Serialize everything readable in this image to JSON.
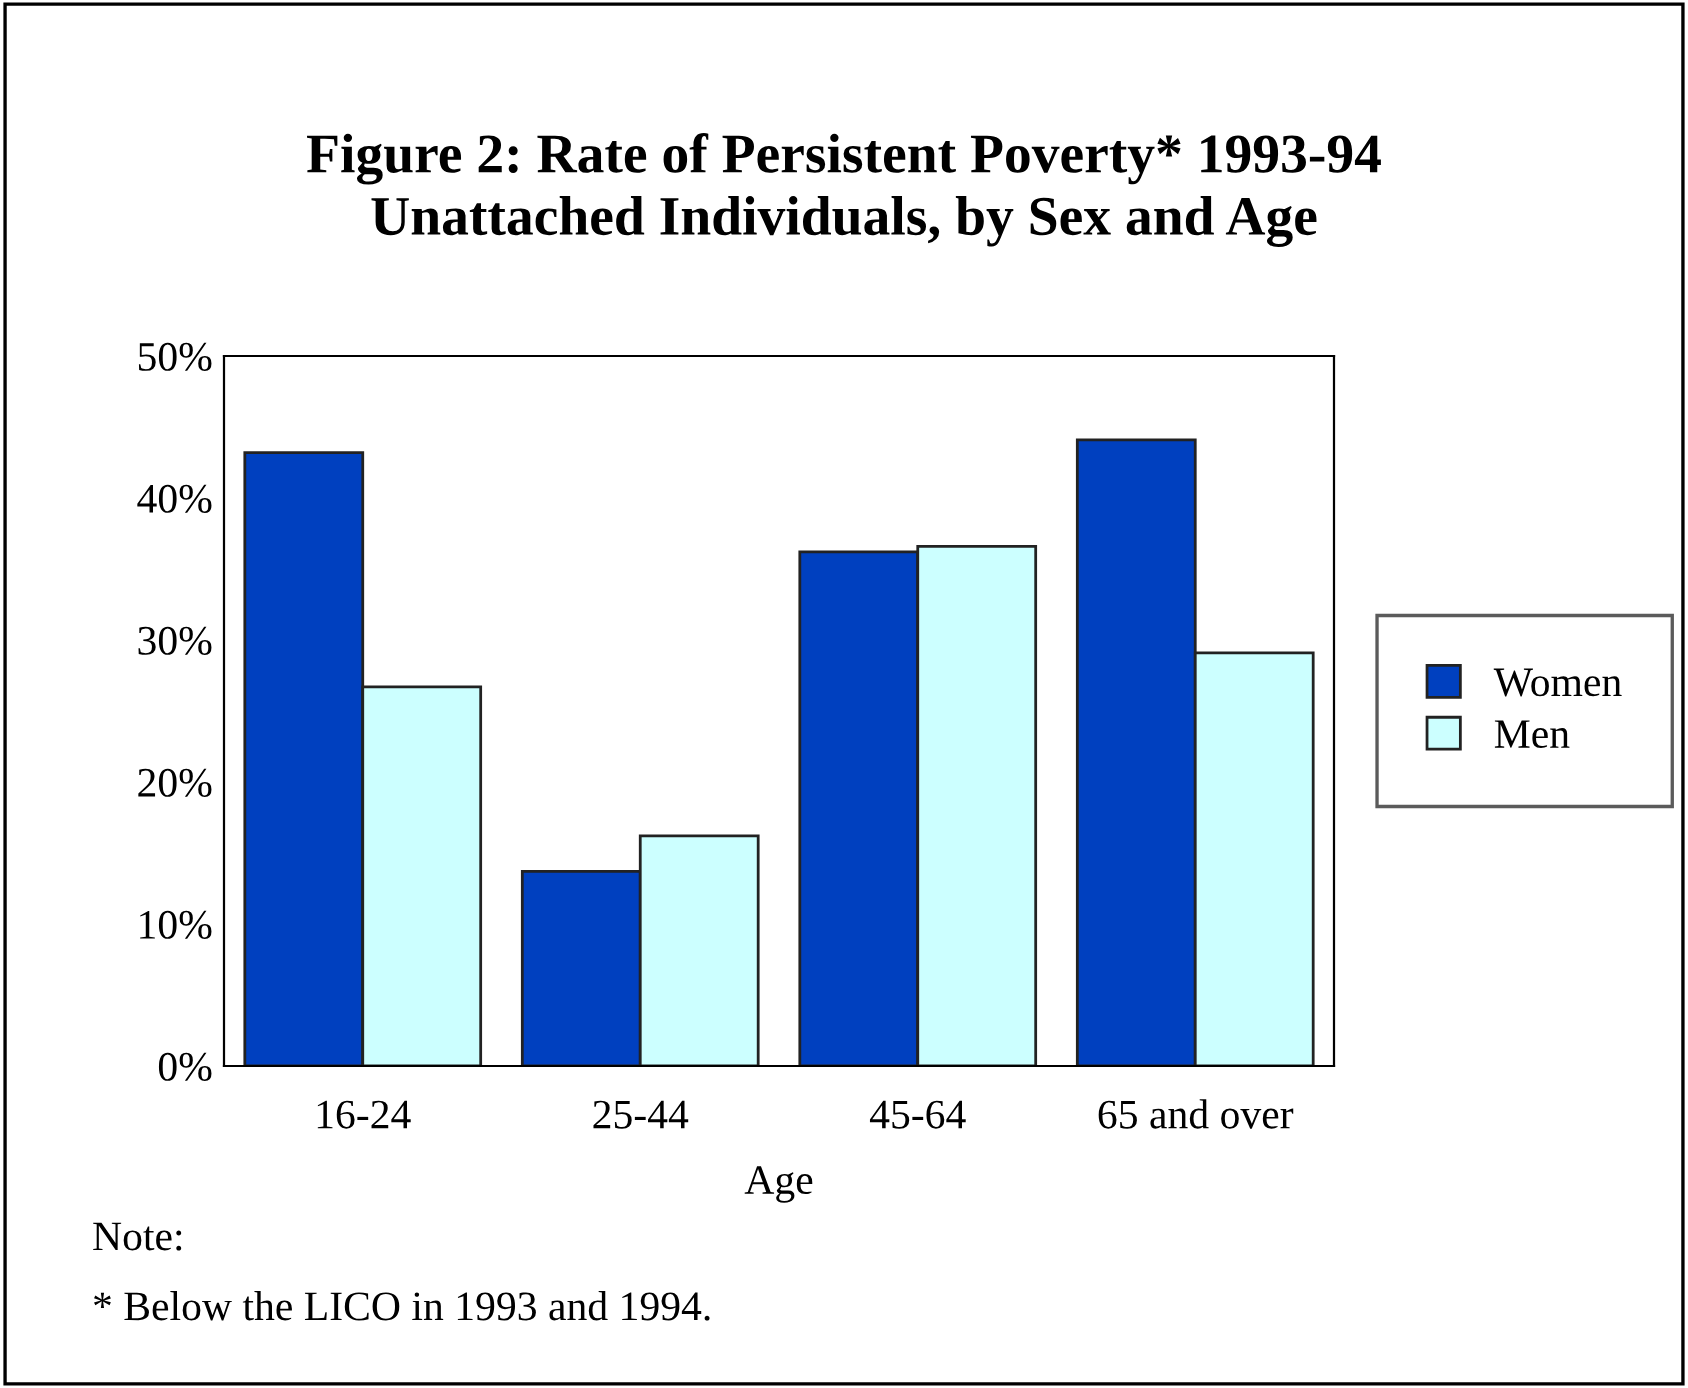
{
  "chart_data": {
    "type": "bar",
    "title": "Figure 2: Rate of Persistent Poverty* 1993-94\nUnattached Individuals, by Sex and Age",
    "xlabel": "Age",
    "categories": [
      "16-24",
      "25-44",
      "45-64",
      "65 and over"
    ],
    "series": [
      {
        "name": "Women",
        "color": "#0040bf",
        "values": [
          43.2,
          13.7,
          36.2,
          44.1
        ]
      },
      {
        "name": "Men",
        "color": "#ccffff",
        "values": [
          26.7,
          16.2,
          36.6,
          29.1
        ]
      }
    ],
    "ylim": [
      0,
      50
    ],
    "yticks": [
      {
        "value": 0,
        "label": "0%"
      },
      {
        "value": 10,
        "label": "10%"
      },
      {
        "value": 20,
        "label": "20%"
      },
      {
        "value": 30,
        "label": "30%"
      },
      {
        "value": 40,
        "label": "40%"
      },
      {
        "value": 50,
        "label": "50%"
      }
    ],
    "grid": false,
    "legend": "right",
    "annotations": [
      "Note:",
      "* Below the LICO in 1993 and 1994."
    ]
  }
}
